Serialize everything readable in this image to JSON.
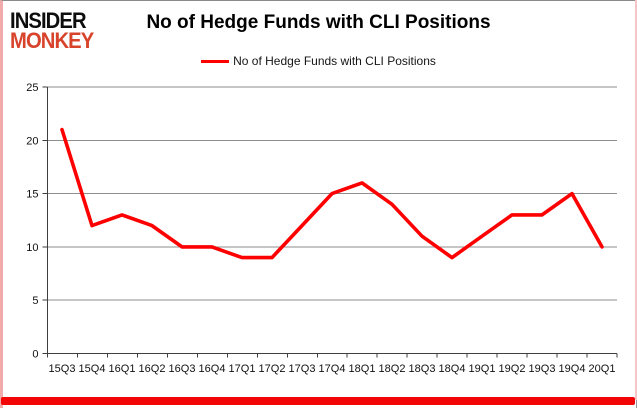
{
  "logo": {
    "line1": "INSIDER",
    "line2": "MONKEY"
  },
  "header": {
    "title": "No of Hedge Funds with CLI Positions"
  },
  "legend": {
    "label": "No of Hedge Funds with CLI Positions"
  },
  "chart_data": {
    "type": "line",
    "title": "No of Hedge Funds with CLI Positions",
    "categories": [
      "15Q3",
      "15Q4",
      "16Q1",
      "16Q2",
      "16Q3",
      "16Q4",
      "17Q1",
      "17Q2",
      "17Q3",
      "17Q4",
      "18Q1",
      "18Q2",
      "18Q3",
      "18Q4",
      "19Q1",
      "19Q2",
      "19Q3",
      "19Q4",
      "20Q1"
    ],
    "values": [
      21,
      12,
      13,
      12,
      10,
      10,
      9,
      9,
      12,
      15,
      16,
      14,
      11,
      9,
      11,
      13,
      13,
      15,
      10
    ],
    "xlabel": "",
    "ylabel": "",
    "ylim": [
      0,
      25
    ],
    "yticks": [
      0,
      5,
      10,
      15,
      20,
      25
    ],
    "grid": true,
    "legend_position": "top",
    "series_name": "No of Hedge Funds with CLI Positions",
    "series_color": "#fe0000",
    "gridline_color": "#8e8e8e",
    "axis_color": "#3f3f3f",
    "tick_label_color": "#111111"
  },
  "colors": {
    "logo_black": "#0d0d0d",
    "logo_red": "#d8432c",
    "frame_pink": "#f2abab",
    "frame_gray": "#8a8a8a",
    "bottom_bar_red": "#f40505",
    "background": "#ffffff"
  }
}
